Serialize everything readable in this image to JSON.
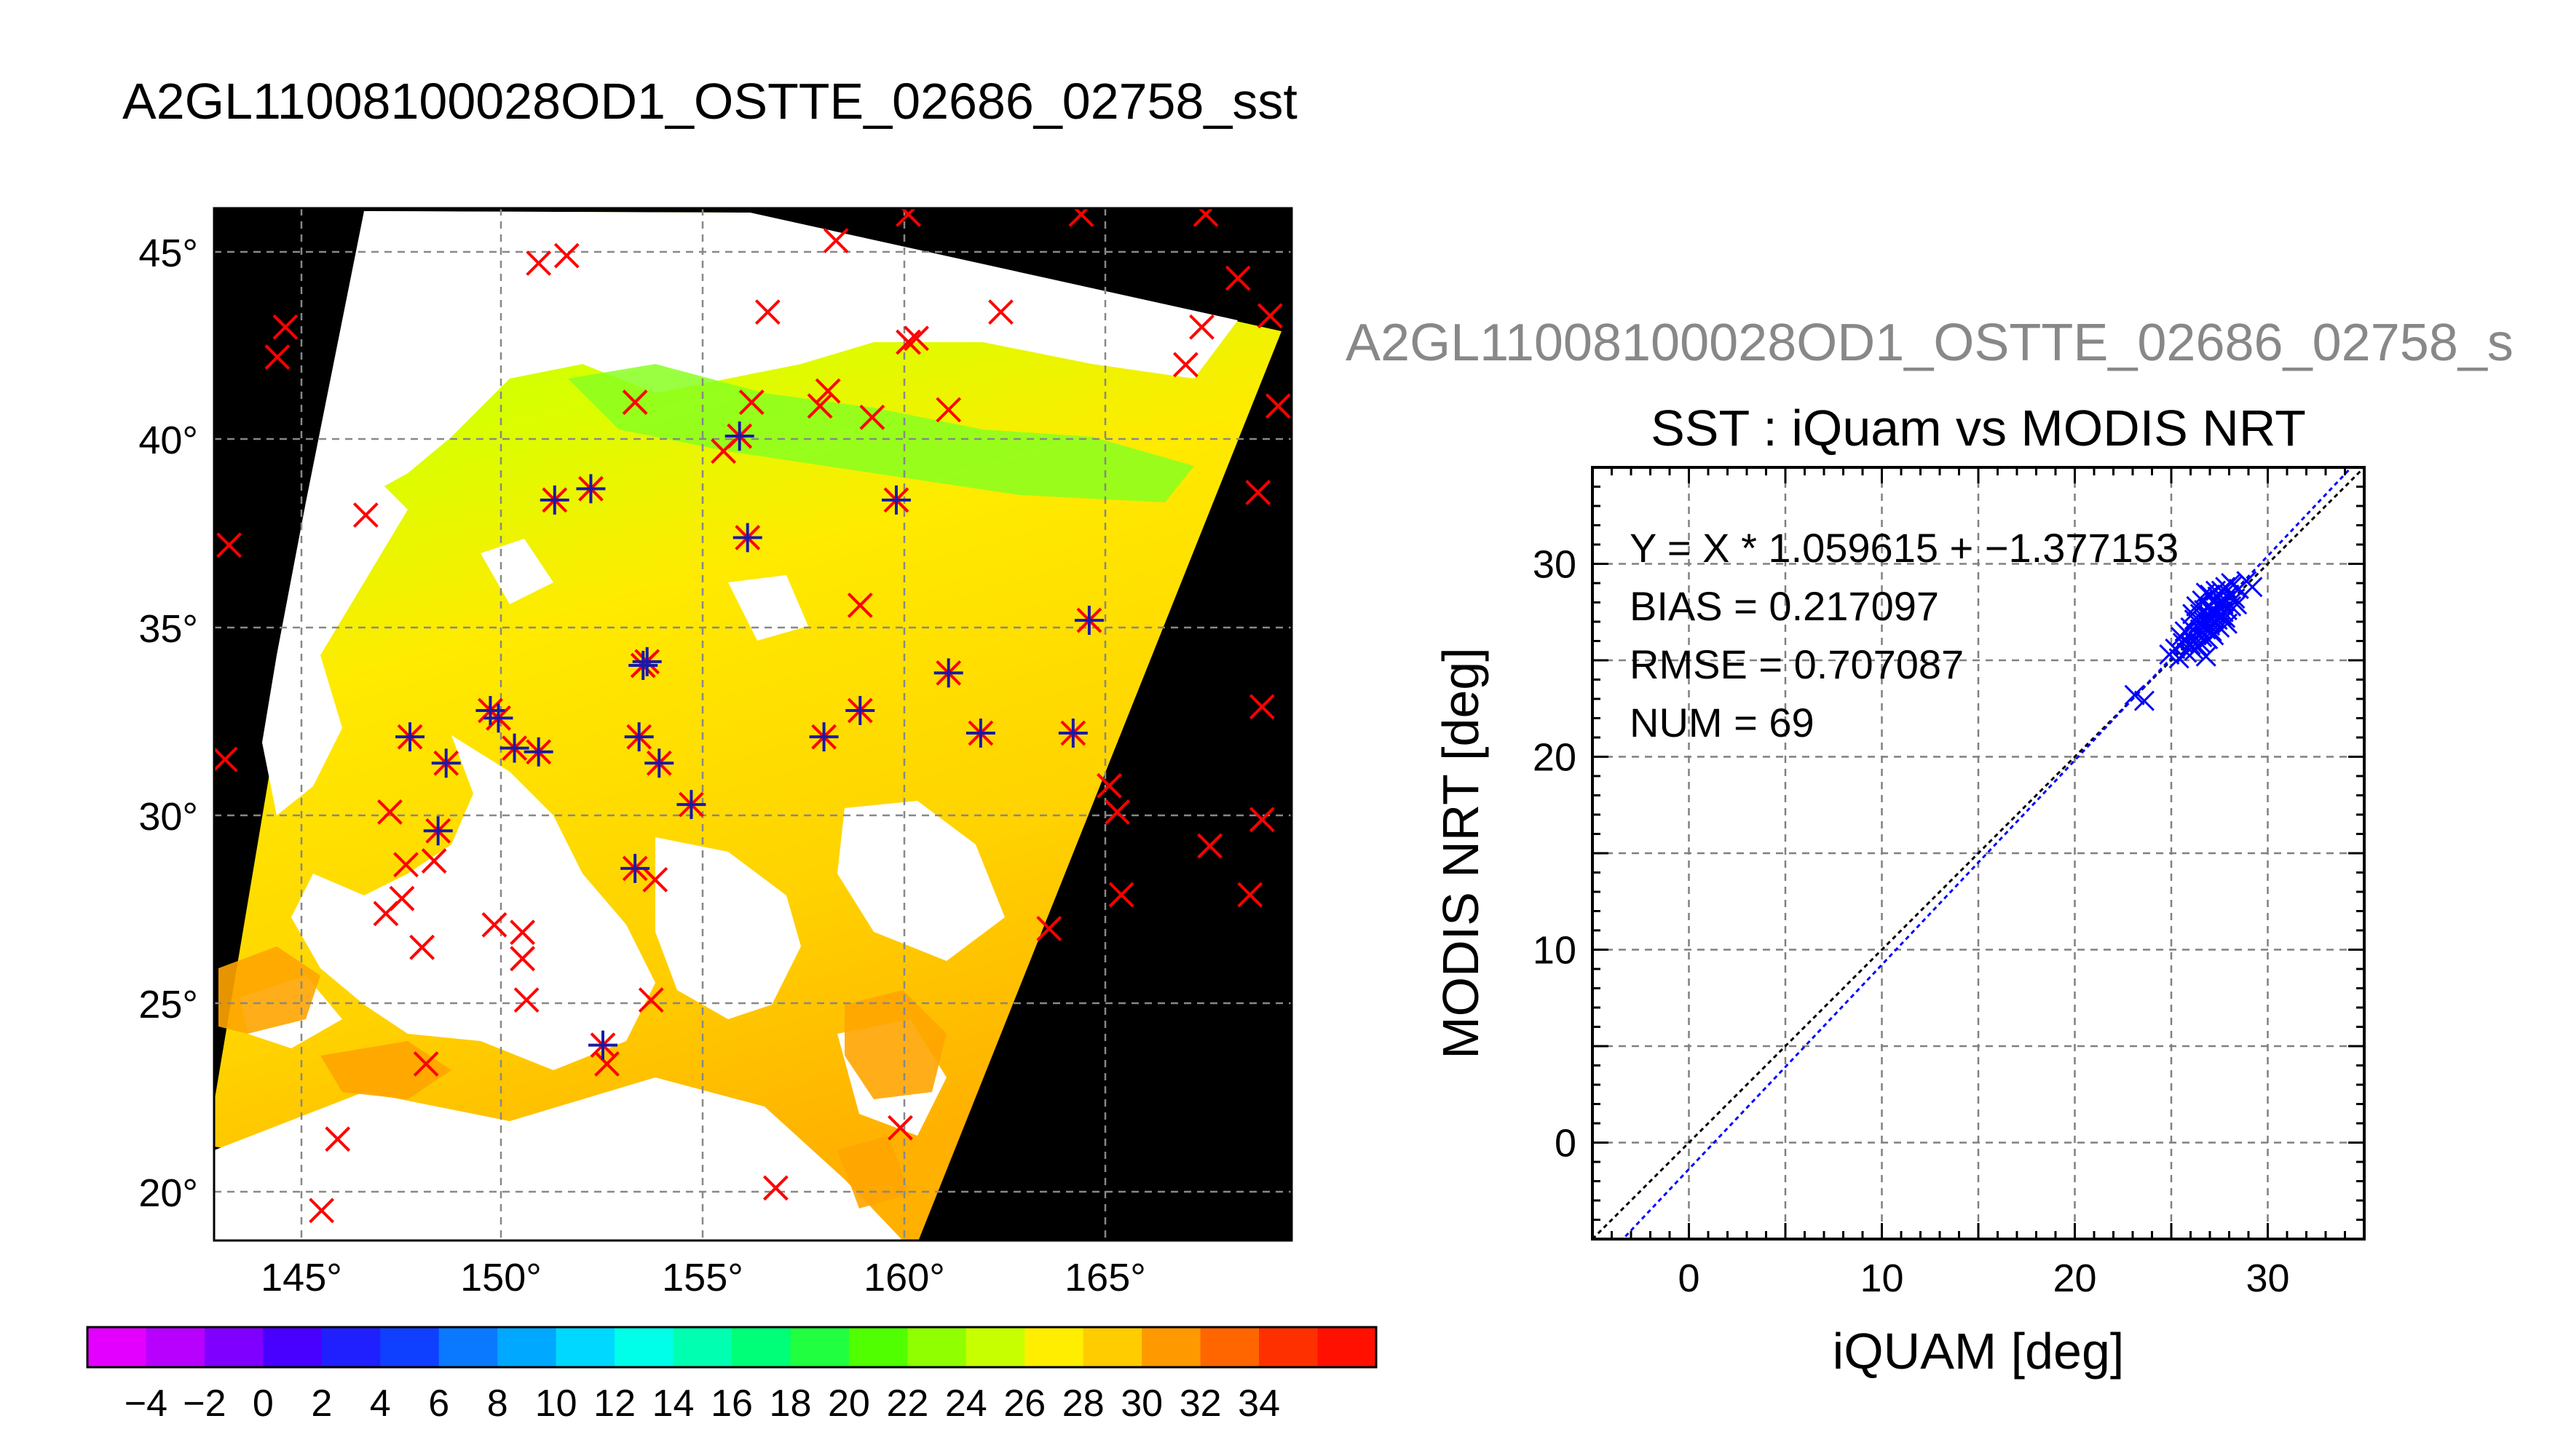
{
  "map_title": "A2GL11008100028OD1_OSTTE_02686_02758_sst",
  "plot_header": "A2GL11008100028OD1_OSTTE_02686_02758_s",
  "colors": {
    "background": "#ffffff",
    "map_void": "#000000",
    "insitu_marker": "#ff0000",
    "matchup_marker": "#1a1aa8",
    "fit_line": "#0000ff",
    "identity_line": "#000000",
    "grid": "#808080"
  },
  "map": {
    "lat_ticks": [
      "45°",
      "40°",
      "35°",
      "30°",
      "25°",
      "20°"
    ],
    "lon_ticks": [
      "145°",
      "150°",
      "155°",
      "160°",
      "165°"
    ],
    "colorbar": {
      "labels": [
        "−4",
        "−2",
        "0",
        "2",
        "4",
        "6",
        "8",
        "10",
        "12",
        "14",
        "16",
        "18",
        "20",
        "22",
        "24",
        "26",
        "28",
        "30",
        "32",
        "34"
      ],
      "colors": [
        "#e400ff",
        "#b800ff",
        "#8000ff",
        "#4800ff",
        "#2020ff",
        "#1040ff",
        "#0a78ff",
        "#00a8ff",
        "#00d8ff",
        "#00ffe8",
        "#00ffb0",
        "#00ff78",
        "#20ff40",
        "#50ff00",
        "#90ff00",
        "#c8ff00",
        "#ffee00",
        "#ffcc00",
        "#ff9900",
        "#ff6600",
        "#ff3000",
        "#ff1000"
      ]
    },
    "insitu_points": [
      [
        143.2,
        37.2
      ],
      [
        143.1,
        31.5
      ],
      [
        144.4,
        42.2
      ],
      [
        144.6,
        43
      ],
      [
        146.6,
        38
      ],
      [
        145.5,
        19.5
      ],
      [
        145.9,
        21.4
      ],
      [
        147.2,
        30.1
      ],
      [
        147.5,
        27.8
      ],
      [
        147.1,
        27.4
      ],
      [
        147.6,
        28.7
      ],
      [
        148,
        26.5
      ],
      [
        148.3,
        28.8
      ],
      [
        147.7,
        32.1
      ],
      [
        148.4,
        29.6
      ],
      [
        148.6,
        31.4
      ],
      [
        148.1,
        23.4
      ],
      [
        149.7,
        32.8
      ],
      [
        149.9,
        32.6
      ],
      [
        149.8,
        27.1
      ],
      [
        150.3,
        31.8
      ],
      [
        150.5,
        26.9
      ],
      [
        150.5,
        26.2
      ],
      [
        150.6,
        25.1
      ],
      [
        150.9,
        31.7
      ],
      [
        150.9,
        44.7
      ],
      [
        151.3,
        38.4
      ],
      [
        151.6,
        44.9
      ],
      [
        152.2,
        38.7
      ],
      [
        152.5,
        23.9
      ],
      [
        152.6,
        23.4
      ],
      [
        153.3,
        28.6
      ],
      [
        153.5,
        34
      ],
      [
        153.4,
        32.1
      ],
      [
        153.6,
        34.1
      ],
      [
        153.8,
        28.3
      ],
      [
        153.7,
        25.1
      ],
      [
        153.9,
        31.4
      ],
      [
        153.3,
        41
      ],
      [
        154.7,
        30.3
      ],
      [
        155.9,
        40.1
      ],
      [
        156.1,
        37.4
      ],
      [
        156.2,
        41
      ],
      [
        156.6,
        43.4
      ],
      [
        156.8,
        20.1
      ],
      [
        157.9,
        40.9
      ],
      [
        158.1,
        41.3
      ],
      [
        158,
        32.1
      ],
      [
        158.3,
        45.3
      ],
      [
        158.9,
        32.8
      ],
      [
        159.2,
        40.6
      ],
      [
        159.8,
        38.4
      ],
      [
        160.1,
        42.6
      ],
      [
        160.3,
        42.7
      ],
      [
        160.1,
        46
      ],
      [
        159.9,
        21.7
      ],
      [
        161.1,
        40.8
      ],
      [
        161.1,
        33.8
      ],
      [
        161.9,
        32.2
      ],
      [
        162.4,
        43.4
      ],
      [
        163.6,
        27
      ],
      [
        164.2,
        32.2
      ],
      [
        164.6,
        35.2
      ],
      [
        165.1,
        30.8
      ],
      [
        165.3,
        30.1
      ],
      [
        165.4,
        27.9
      ],
      [
        164.4,
        46
      ],
      [
        167,
        42
      ],
      [
        167.4,
        43
      ],
      [
        167.5,
        46
      ],
      [
        167.6,
        29.2
      ],
      [
        168.3,
        44.3
      ],
      [
        168.6,
        27.9
      ],
      [
        168.9,
        29.9
      ],
      [
        168.8,
        38.6
      ],
      [
        168.9,
        32.9
      ],
      [
        169.1,
        43.3
      ],
      [
        169.3,
        40.9
      ],
      [
        158.9,
        35.6
      ],
      [
        155.5,
        39.7
      ]
    ],
    "matchup_points": [
      [
        151.3,
        38.4
      ],
      [
        152.2,
        38.7
      ],
      [
        156.1,
        37.4
      ],
      [
        159.8,
        38.4
      ],
      [
        153.5,
        34
      ],
      [
        153.6,
        34.1
      ],
      [
        149.7,
        32.8
      ],
      [
        149.9,
        32.6
      ],
      [
        147.7,
        32.1
      ],
      [
        148.6,
        31.4
      ],
      [
        150.3,
        31.8
      ],
      [
        150.9,
        31.7
      ],
      [
        153.4,
        32.1
      ],
      [
        153.9,
        31.4
      ],
      [
        154.7,
        30.3
      ],
      [
        148.4,
        29.6
      ],
      [
        153.3,
        28.6
      ],
      [
        152.5,
        23.9
      ],
      [
        158,
        32.1
      ],
      [
        158.9,
        32.8
      ],
      [
        161.1,
        33.8
      ],
      [
        161.9,
        32.2
      ],
      [
        164.2,
        32.2
      ],
      [
        164.6,
        35.2
      ],
      [
        155.9,
        40.1
      ]
    ]
  },
  "chart_data": {
    "type": "scatter",
    "title": "SST : iQuam vs MODIS NRT",
    "xlabel": "iQUAM [deg]",
    "ylabel": "MODIS NRT [deg]",
    "xlim": [
      -5,
      35
    ],
    "ylim": [
      -5,
      35
    ],
    "xticks": [
      0,
      10,
      20,
      30
    ],
    "yticks": [
      0,
      10,
      20,
      30
    ],
    "grid": true,
    "annotations": [
      "Y = X * 1.059615 + −1.377153",
      "BIAS = 0.217097",
      "RMSE = 0.707087",
      "NUM = 69"
    ],
    "fit": {
      "slope": 1.059615,
      "intercept": -1.377153
    },
    "points": [
      [
        23.1,
        23.2
      ],
      [
        23.6,
        22.9
      ],
      [
        24.9,
        25.3
      ],
      [
        25.2,
        25.6
      ],
      [
        25.4,
        25.1
      ],
      [
        25.6,
        25.9
      ],
      [
        25.8,
        25.4
      ],
      [
        25.9,
        26.3
      ],
      [
        26.0,
        26.7
      ],
      [
        26.1,
        26.0
      ],
      [
        26.2,
        25.5
      ],
      [
        26.2,
        27.1
      ],
      [
        26.3,
        26.4
      ],
      [
        26.4,
        26.9
      ],
      [
        26.5,
        27.4
      ],
      [
        26.5,
        25.9
      ],
      [
        26.6,
        26.2
      ],
      [
        26.7,
        27.0
      ],
      [
        26.7,
        27.6
      ],
      [
        26.8,
        26.6
      ],
      [
        26.8,
        25.2
      ],
      [
        26.9,
        27.3
      ],
      [
        26.9,
        26.1
      ],
      [
        27.0,
        27.8
      ],
      [
        27.0,
        26.8
      ],
      [
        27.1,
        27.2
      ],
      [
        27.1,
        26.5
      ],
      [
        27.2,
        27.6
      ],
      [
        27.2,
        28.0
      ],
      [
        27.3,
        26.9
      ],
      [
        27.3,
        27.4
      ],
      [
        27.4,
        27.1
      ],
      [
        27.4,
        28.3
      ],
      [
        27.5,
        27.7
      ],
      [
        27.5,
        26.7
      ],
      [
        27.6,
        27.3
      ],
      [
        27.6,
        28.6
      ],
      [
        27.7,
        27.9
      ],
      [
        27.7,
        27.5
      ],
      [
        27.8,
        28.1
      ],
      [
        27.8,
        27.2
      ],
      [
        27.9,
        27.6
      ],
      [
        28.0,
        28.4
      ],
      [
        28.1,
        27.8
      ],
      [
        28.2,
        28.9
      ],
      [
        28.3,
        28.2
      ],
      [
        28.5,
        28.7
      ],
      [
        28.9,
        29.1
      ],
      [
        26.3,
        27.8
      ],
      [
        26.6,
        28.1
      ],
      [
        27.0,
        28.4
      ],
      [
        26.0,
        25.8
      ],
      [
        25.7,
        26.5
      ],
      [
        26.4,
        25.7
      ],
      [
        27.9,
        26.9
      ],
      [
        28.1,
        29.0
      ],
      [
        27.4,
        27.9
      ],
      [
        26.9,
        27.7
      ],
      [
        27.2,
        26.3
      ],
      [
        26.5,
        26.6
      ],
      [
        25.5,
        26.2
      ],
      [
        27.6,
        28.1
      ],
      [
        28.4,
        27.9
      ],
      [
        26.1,
        27.4
      ],
      [
        27.8,
        28.8
      ],
      [
        27.0,
        27.0
      ],
      [
        26.8,
        28.5
      ],
      [
        27.3,
        28.6
      ],
      [
        29.2,
        28.8
      ]
    ]
  }
}
